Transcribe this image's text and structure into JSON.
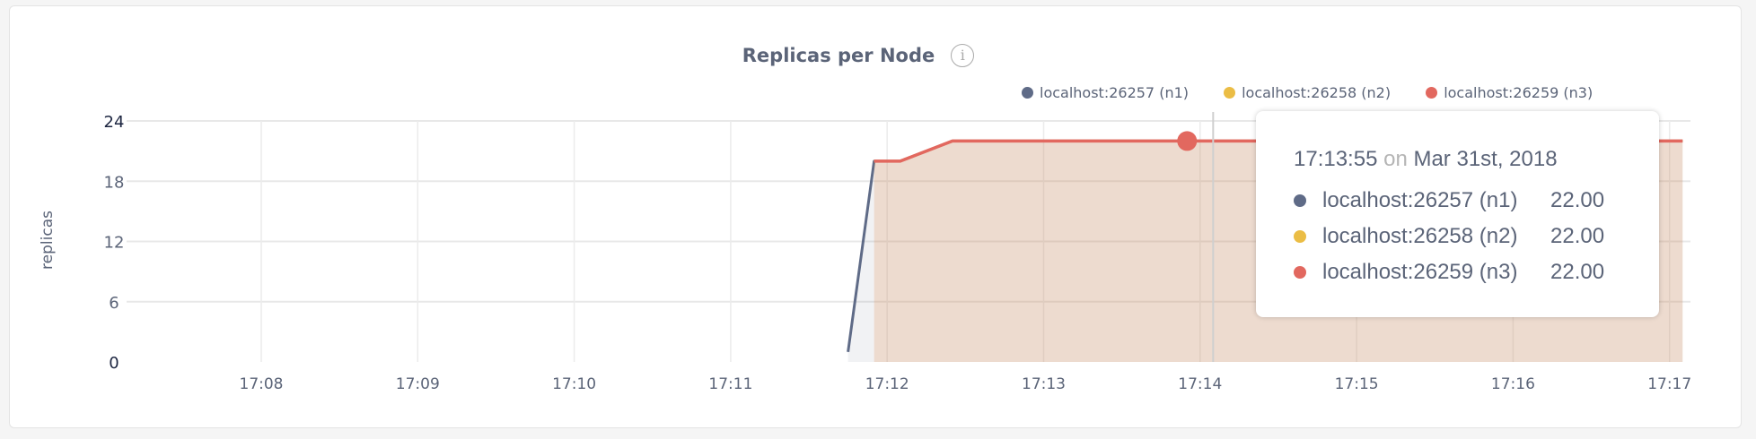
{
  "chart_data": {
    "type": "area",
    "title": "Replicas per Node",
    "ylabel": "replicas",
    "xlabel": "",
    "ylim": [
      0,
      24
    ],
    "yticks": [
      "0",
      "6",
      "12",
      "18",
      "24"
    ],
    "xticks": [
      "17:08",
      "17:09",
      "17:10",
      "17:11",
      "17:12",
      "17:13",
      "17:14",
      "17:15",
      "17:16",
      "17:17"
    ],
    "xlim": [
      "17:07:00",
      "17:17:10"
    ],
    "grid": true,
    "legend_placement": "top-right",
    "series": [
      {
        "name": "localhost:26257 (n1)",
        "color": "#5f6b87",
        "points": [
          [
            "17:11:45",
            1
          ],
          [
            "17:11:55",
            20
          ],
          [
            "17:12:05",
            20
          ],
          [
            "17:12:25",
            22
          ],
          [
            "17:17:05",
            22
          ]
        ]
      },
      {
        "name": "localhost:26258 (n2)",
        "color": "#ebbd45",
        "points": [
          [
            "17:11:55",
            20
          ],
          [
            "17:12:05",
            20
          ],
          [
            "17:12:25",
            22
          ],
          [
            "17:17:05",
            22
          ]
        ]
      },
      {
        "name": "localhost:26259 (n3)",
        "color": "#e2685f",
        "points": [
          [
            "17:11:55",
            20
          ],
          [
            "17:12:05",
            20
          ],
          [
            "17:12:25",
            22
          ],
          [
            "17:17:05",
            22
          ]
        ]
      }
    ],
    "hover_point": {
      "time": "17:13:55",
      "value": 22
    }
  },
  "tooltip": {
    "time": "17:13:55",
    "on": "on",
    "date": "Mar 31st, 2018",
    "rows": [
      {
        "name": "localhost:26257 (n1)",
        "value": "22.00",
        "color": "#5f6b87"
      },
      {
        "name": "localhost:26258 (n2)",
        "value": "22.00",
        "color": "#ebbd45"
      },
      {
        "name": "localhost:26259 (n3)",
        "value": "22.00",
        "color": "#e2685f"
      }
    ]
  },
  "info_icon": "info-icon"
}
